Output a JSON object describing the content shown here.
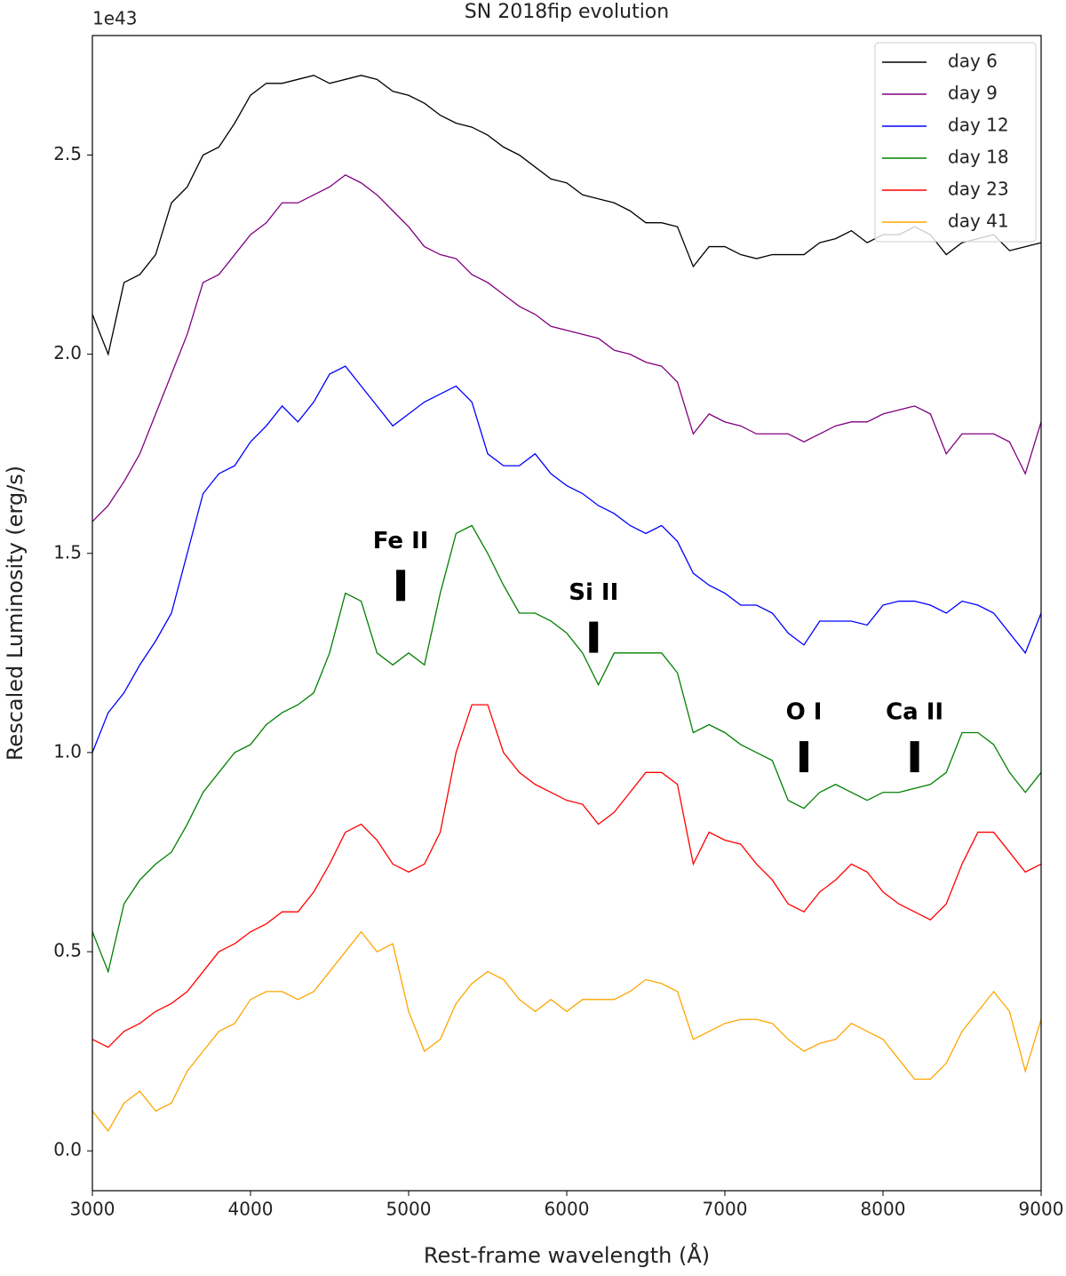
{
  "chart_data": {
    "type": "line",
    "title": "SN 2018fip evolution",
    "x_label": "Rest-frame wavelength (Å)",
    "y_label": "Rescaled Luminosity (erg/s)",
    "y_offset_label": "1e43",
    "legend": "upper right",
    "xlim": [
      3000,
      9000
    ],
    "ylim": [
      -0.1,
      2.8
    ],
    "xticks": [
      3000,
      4000,
      5000,
      6000,
      7000,
      8000,
      9000
    ],
    "yticks": [
      {
        "value": 0,
        "label": "0.0"
      },
      0.5,
      {
        "value": 1,
        "label": "1.0"
      },
      1.5,
      {
        "value": 2,
        "label": "2.0"
      },
      2.5
    ],
    "x": [
      3000,
      3100,
      3200,
      3300,
      3400,
      3500,
      3600,
      3700,
      3800,
      3900,
      4000,
      4100,
      4200,
      4300,
      4400,
      4500,
      4600,
      4700,
      4800,
      4900,
      5000,
      5100,
      5200,
      5300,
      5400,
      5500,
      5600,
      5700,
      5800,
      5900,
      6000,
      6100,
      6200,
      6300,
      6400,
      6500,
      6600,
      6700,
      6800,
      6900,
      7000,
      7100,
      7200,
      7300,
      7400,
      7500,
      7600,
      7700,
      7800,
      7900,
      8000,
      8100,
      8200,
      8300,
      8400,
      8500,
      8600,
      8700,
      8800,
      8900,
      9000
    ],
    "series": [
      {
        "name": "day 6",
        "color": "#000000",
        "values": [
          2.1,
          2.0,
          2.18,
          2.2,
          2.25,
          2.38,
          2.42,
          2.5,
          2.52,
          2.58,
          2.65,
          2.68,
          2.68,
          2.69,
          2.7,
          2.68,
          2.69,
          2.7,
          2.69,
          2.66,
          2.65,
          2.63,
          2.6,
          2.58,
          2.57,
          2.55,
          2.52,
          2.5,
          2.47,
          2.44,
          2.43,
          2.4,
          2.39,
          2.38,
          2.36,
          2.33,
          2.33,
          2.32,
          2.22,
          2.27,
          2.27,
          2.25,
          2.24,
          2.25,
          2.25,
          2.25,
          2.28,
          2.29,
          2.31,
          2.28,
          2.3,
          2.3,
          2.32,
          2.3,
          2.25,
          2.28,
          2.29,
          2.3,
          2.26,
          2.27,
          2.28
        ]
      },
      {
        "name": "day 9",
        "color": "#800080",
        "values": [
          1.58,
          1.62,
          1.68,
          1.75,
          1.85,
          1.95,
          2.05,
          2.18,
          2.2,
          2.25,
          2.3,
          2.33,
          2.38,
          2.38,
          2.4,
          2.42,
          2.45,
          2.43,
          2.4,
          2.36,
          2.32,
          2.27,
          2.25,
          2.24,
          2.2,
          2.18,
          2.15,
          2.12,
          2.1,
          2.07,
          2.06,
          2.05,
          2.04,
          2.01,
          2.0,
          1.98,
          1.97,
          1.93,
          1.8,
          1.85,
          1.83,
          1.82,
          1.8,
          1.8,
          1.8,
          1.78,
          1.8,
          1.82,
          1.83,
          1.83,
          1.85,
          1.86,
          1.87,
          1.85,
          1.75,
          1.8,
          1.8,
          1.8,
          1.78,
          1.7,
          1.83
        ]
      },
      {
        "name": "day 12",
        "color": "#0000ff",
        "values": [
          1.0,
          1.1,
          1.15,
          1.22,
          1.28,
          1.35,
          1.5,
          1.65,
          1.7,
          1.72,
          1.78,
          1.82,
          1.87,
          1.83,
          1.88,
          1.95,
          1.97,
          1.92,
          1.87,
          1.82,
          1.85,
          1.88,
          1.9,
          1.92,
          1.88,
          1.75,
          1.72,
          1.72,
          1.75,
          1.7,
          1.67,
          1.65,
          1.62,
          1.6,
          1.57,
          1.55,
          1.57,
          1.53,
          1.45,
          1.42,
          1.4,
          1.37,
          1.37,
          1.35,
          1.3,
          1.27,
          1.33,
          1.33,
          1.33,
          1.32,
          1.37,
          1.38,
          1.38,
          1.37,
          1.35,
          1.38,
          1.37,
          1.35,
          1.3,
          1.25,
          1.35
        ]
      },
      {
        "name": "day 18",
        "color": "#008000",
        "values": [
          0.55,
          0.45,
          0.62,
          0.68,
          0.72,
          0.75,
          0.82,
          0.9,
          0.95,
          1.0,
          1.02,
          1.07,
          1.1,
          1.12,
          1.15,
          1.25,
          1.4,
          1.38,
          1.25,
          1.22,
          1.25,
          1.22,
          1.4,
          1.55,
          1.57,
          1.5,
          1.42,
          1.35,
          1.35,
          1.33,
          1.3,
          1.25,
          1.17,
          1.25,
          1.25,
          1.25,
          1.25,
          1.2,
          1.05,
          1.07,
          1.05,
          1.02,
          1.0,
          0.98,
          0.88,
          0.86,
          0.9,
          0.92,
          0.9,
          0.88,
          0.9,
          0.9,
          0.91,
          0.92,
          0.95,
          1.05,
          1.05,
          1.02,
          0.95,
          0.9,
          0.95
        ]
      },
      {
        "name": "day 23",
        "color": "#ff0000",
        "values": [
          0.28,
          0.26,
          0.3,
          0.32,
          0.35,
          0.37,
          0.4,
          0.45,
          0.5,
          0.52,
          0.55,
          0.57,
          0.6,
          0.6,
          0.65,
          0.72,
          0.8,
          0.82,
          0.78,
          0.72,
          0.7,
          0.72,
          0.8,
          1.0,
          1.12,
          1.12,
          1.0,
          0.95,
          0.92,
          0.9,
          0.88,
          0.87,
          0.82,
          0.85,
          0.9,
          0.95,
          0.95,
          0.92,
          0.72,
          0.8,
          0.78,
          0.77,
          0.72,
          0.68,
          0.62,
          0.6,
          0.65,
          0.68,
          0.72,
          0.7,
          0.65,
          0.62,
          0.6,
          0.58,
          0.62,
          0.72,
          0.8,
          0.8,
          0.75,
          0.7,
          0.72
        ]
      },
      {
        "name": "day 41",
        "color": "#ffa500",
        "values": [
          0.1,
          0.05,
          0.12,
          0.15,
          0.1,
          0.12,
          0.2,
          0.25,
          0.3,
          0.32,
          0.38,
          0.4,
          0.4,
          0.38,
          0.4,
          0.45,
          0.5,
          0.55,
          0.5,
          0.52,
          0.35,
          0.25,
          0.28,
          0.37,
          0.42,
          0.45,
          0.43,
          0.38,
          0.35,
          0.38,
          0.35,
          0.38,
          0.38,
          0.38,
          0.4,
          0.43,
          0.42,
          0.4,
          0.28,
          0.3,
          0.32,
          0.33,
          0.33,
          0.32,
          0.28,
          0.25,
          0.27,
          0.28,
          0.32,
          0.3,
          0.28,
          0.23,
          0.18,
          0.18,
          0.22,
          0.3,
          0.35,
          0.4,
          0.35,
          0.2,
          0.33
        ]
      }
    ],
    "annotations": [
      {
        "text": "Fe II",
        "x": 4950,
        "y": 1.53
      },
      {
        "text": "Si II",
        "x": 6170,
        "y": 1.4
      },
      {
        "text": "O I",
        "x": 7500,
        "y": 1.1
      },
      {
        "text": "Ca II",
        "x": 8200,
        "y": 1.1
      }
    ]
  }
}
